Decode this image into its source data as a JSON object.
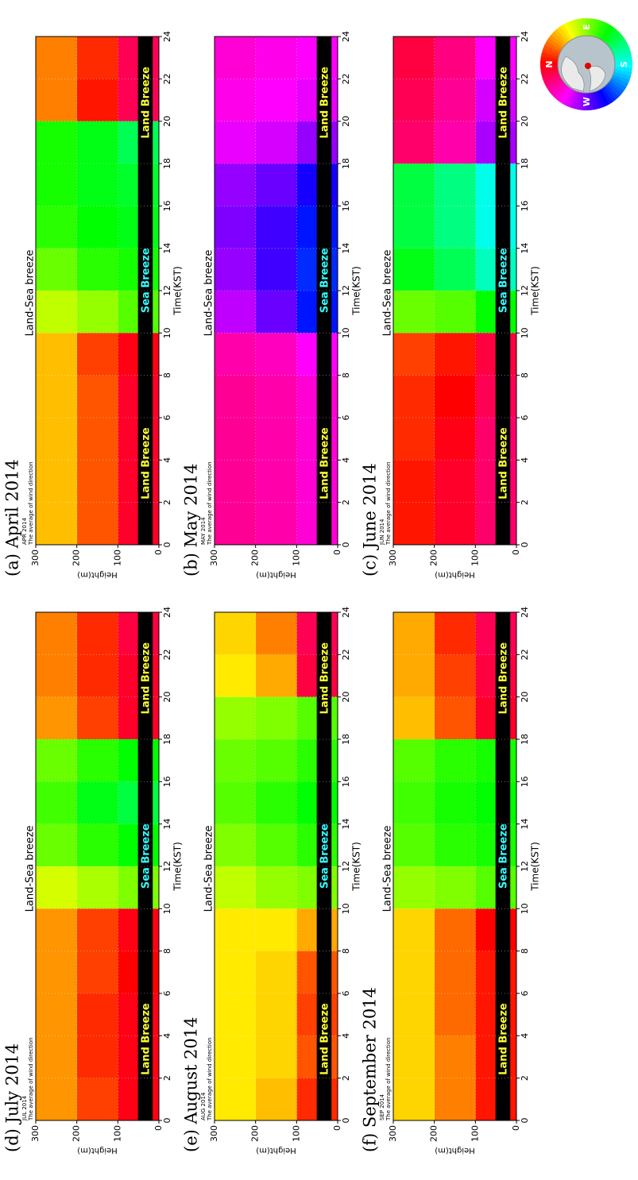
{
  "chart_data": [
    {
      "type": "heatmap",
      "title": "(a) April 2014",
      "header": "APR 2014",
      "subtitle": "The average of wind direction",
      "annotation": "Land-Sea breeze",
      "xlabel": "Time(KST)",
      "ylabel": "Height(m)",
      "xlim": [
        0,
        24
      ],
      "ylim": [
        0,
        300
      ],
      "xticks": [
        0,
        2,
        4,
        6,
        8,
        10,
        12,
        14,
        16,
        18,
        20,
        22,
        24
      ],
      "yticks": [
        0,
        100,
        200,
        300
      ],
      "grid": true,
      "x_bins": [
        0,
        2,
        4,
        6,
        8,
        10,
        12,
        14,
        16,
        18,
        20,
        22,
        24
      ],
      "y_bins": [
        0,
        100,
        200,
        300
      ],
      "values": [
        [
          350,
          350,
          350,
          350,
          355,
          100,
          115,
          125,
          130,
          140,
          340,
          340
        ],
        [
          20,
          20,
          20,
          20,
          15,
          85,
          110,
          120,
          125,
          125,
          5,
          10
        ],
        [
          45,
          45,
          45,
          45,
          45,
          75,
          95,
          110,
          115,
          115,
          30,
          30
        ]
      ],
      "breeze_labels": [
        "Land Breeze",
        "Sea Breeze",
        "Land Breeze"
      ],
      "breeze_label_colors": [
        "#ffff33",
        "#33ffff",
        "#ffff33"
      ]
    },
    {
      "type": "heatmap",
      "title": "(b) May 2014",
      "header": "MAY 2014",
      "subtitle": "The average of wind direction",
      "annotation": "Land-Sea breeze",
      "xlabel": "Time(KST)",
      "ylabel": "Height(m)",
      "xlim": [
        0,
        24
      ],
      "ylim": [
        0,
        300
      ],
      "xticks": [
        0,
        2,
        4,
        6,
        8,
        10,
        12,
        14,
        16,
        18,
        20,
        22,
        24
      ],
      "yticks": [
        0,
        100,
        200,
        300
      ],
      "grid": true,
      "x_bins": [
        0,
        2,
        4,
        6,
        8,
        10,
        12,
        14,
        16,
        18,
        20,
        22,
        24
      ],
      "y_bins": [
        0,
        100,
        200,
        300
      ],
      "values": [
        [
          310,
          310,
          310,
          310,
          300,
          235,
          230,
          235,
          245,
          275,
          295,
          300
        ],
        [
          320,
          320,
          320,
          320,
          315,
          265,
          255,
          255,
          265,
          290,
          300,
          305
        ],
        [
          325,
          325,
          325,
          325,
          320,
          285,
          275,
          270,
          275,
          295,
          305,
          310
        ]
      ],
      "breeze_labels": [
        "Land Breeze",
        "Sea Breeze",
        "Land Breeze"
      ],
      "breeze_label_colors": [
        "#ffff33",
        "#33ffff",
        "#ffff33"
      ]
    },
    {
      "type": "heatmap",
      "title": "(c) June 2014",
      "header": "JUN 2014",
      "subtitle": "The average of wind direction",
      "annotation": "Land-Sea breeze",
      "xlabel": "Time(KST)",
      "ylabel": "Height(m)",
      "xlim": [
        0,
        24
      ],
      "ylim": [
        0,
        300
      ],
      "xticks": [
        0,
        2,
        4,
        6,
        8,
        10,
        12,
        14,
        16,
        18,
        20,
        22,
        24
      ],
      "yticks": [
        0,
        100,
        200,
        300
      ],
      "grid": true,
      "x_bins": [
        0,
        2,
        4,
        6,
        8,
        10,
        12,
        14,
        16,
        18,
        20,
        22,
        24
      ],
      "y_bins": [
        0,
        100,
        200,
        300
      ],
      "values": [
        [
          335,
          335,
          335,
          340,
          345,
          120,
          165,
          175,
          175,
          280,
          290,
          300
        ],
        [
          350,
          350,
          355,
          0,
          5,
          100,
          140,
          150,
          150,
          320,
          325,
          330
        ],
        [
          5,
          5,
          10,
          10,
          15,
          95,
          125,
          135,
          135,
          335,
          340,
          345
        ]
      ],
      "breeze_labels": [
        "Land Breeze",
        "Sea Breeze",
        "Land Breeze"
      ],
      "breeze_label_colors": [
        "#ffff33",
        "#33ffff",
        "#ffff33"
      ]
    },
    {
      "type": "heatmap",
      "title": "(d) July 2014",
      "header": "JUL 2014",
      "subtitle": "The average of wind direction",
      "annotation": "Land-Sea breeze",
      "xlabel": "Time(KST)",
      "ylabel": "Height(m)",
      "xlim": [
        0,
        24
      ],
      "ylim": [
        0,
        300
      ],
      "xticks": [
        0,
        2,
        4,
        6,
        8,
        10,
        12,
        14,
        16,
        18,
        20,
        22,
        24
      ],
      "yticks": [
        0,
        100,
        200,
        300
      ],
      "grid": true,
      "x_bins": [
        0,
        2,
        4,
        6,
        8,
        10,
        12,
        14,
        16,
        18,
        20,
        22,
        24
      ],
      "y_bins": [
        0,
        100,
        200,
        300
      ],
      "values": [
        [
          355,
          355,
          355,
          0,
          355,
          90,
          120,
          135,
          120,
          350,
          350,
          345
        ],
        [
          15,
          10,
          10,
          15,
          15,
          80,
          110,
          125,
          110,
          15,
          10,
          10
        ],
        [
          35,
          35,
          35,
          35,
          35,
          70,
          95,
          105,
          95,
          35,
          30,
          30
        ]
      ],
      "breeze_labels": [
        "Land Breeze",
        "Sea Breeze",
        "Land Breeze"
      ],
      "breeze_label_colors": [
        "#ffff33",
        "#33ffff",
        "#ffff33"
      ]
    },
    {
      "type": "heatmap",
      "title": "(e) August 2014",
      "header": "AUG 2014",
      "subtitle": "The average of wind direction",
      "annotation": "Land-Sea breeze",
      "xlabel": "Time(KST)",
      "ylabel": "Height(m)",
      "xlim": [
        0,
        24
      ],
      "ylim": [
        0,
        300
      ],
      "xticks": [
        0,
        2,
        4,
        6,
        8,
        10,
        12,
        14,
        16,
        18,
        20,
        22,
        24
      ],
      "yticks": [
        0,
        100,
        200,
        300
      ],
      "grid": true,
      "x_bins": [
        0,
        2,
        4,
        6,
        8,
        10,
        12,
        14,
        16,
        18,
        20,
        22,
        24
      ],
      "y_bins": [
        0,
        100,
        200,
        300
      ],
      "values": [
        [
          10,
          20,
          15,
          20,
          40,
          90,
          110,
          120,
          110,
          100,
          345,
          340
        ],
        [
          45,
          50,
          50,
          50,
          55,
          85,
          100,
          110,
          100,
          90,
          40,
          30
        ],
        [
          55,
          55,
          55,
          55,
          55,
          75,
          90,
          100,
          95,
          85,
          55,
          50
        ]
      ],
      "breeze_labels": [
        "Land Breeze",
        "Sea Breeze",
        "Land Breeze"
      ],
      "breeze_label_colors": [
        "#ffff33",
        "#33ffff",
        "#ffff33"
      ]
    },
    {
      "type": "heatmap",
      "title": "(f) September 2014",
      "header": "SEP 2014",
      "subtitle": "The average of wind direction",
      "annotation": "Land-Sea breeze",
      "xlabel": "Time(KST)",
      "ylabel": "Height(m)",
      "xlim": [
        0,
        24
      ],
      "ylim": [
        0,
        300
      ],
      "xticks": [
        0,
        2,
        4,
        6,
        8,
        10,
        12,
        14,
        16,
        18,
        20,
        22,
        24
      ],
      "yticks": [
        0,
        100,
        200,
        300
      ],
      "grid": true,
      "x_bins": [
        0,
        2,
        4,
        6,
        8,
        10,
        12,
        14,
        16,
        18,
        20,
        22,
        24
      ],
      "y_bins": [
        0,
        100,
        200,
        300
      ],
      "values": [
        [
          5,
          5,
          5,
          5,
          0,
          100,
          115,
          120,
          115,
          350,
          345,
          340
        ],
        [
          30,
          30,
          25,
          25,
          25,
          90,
          110,
          115,
          110,
          20,
          15,
          10
        ],
        [
          50,
          50,
          50,
          50,
          50,
          85,
          100,
          105,
          100,
          45,
          40,
          40
        ]
      ],
      "breeze_labels": [
        "Land Breeze",
        "Sea Breeze",
        "Land Breeze"
      ],
      "breeze_label_colors": [
        "#ffff33",
        "#33ffff",
        "#ffff33"
      ]
    }
  ],
  "compass": {
    "labels": [
      "N",
      "E",
      "S",
      "W"
    ]
  }
}
